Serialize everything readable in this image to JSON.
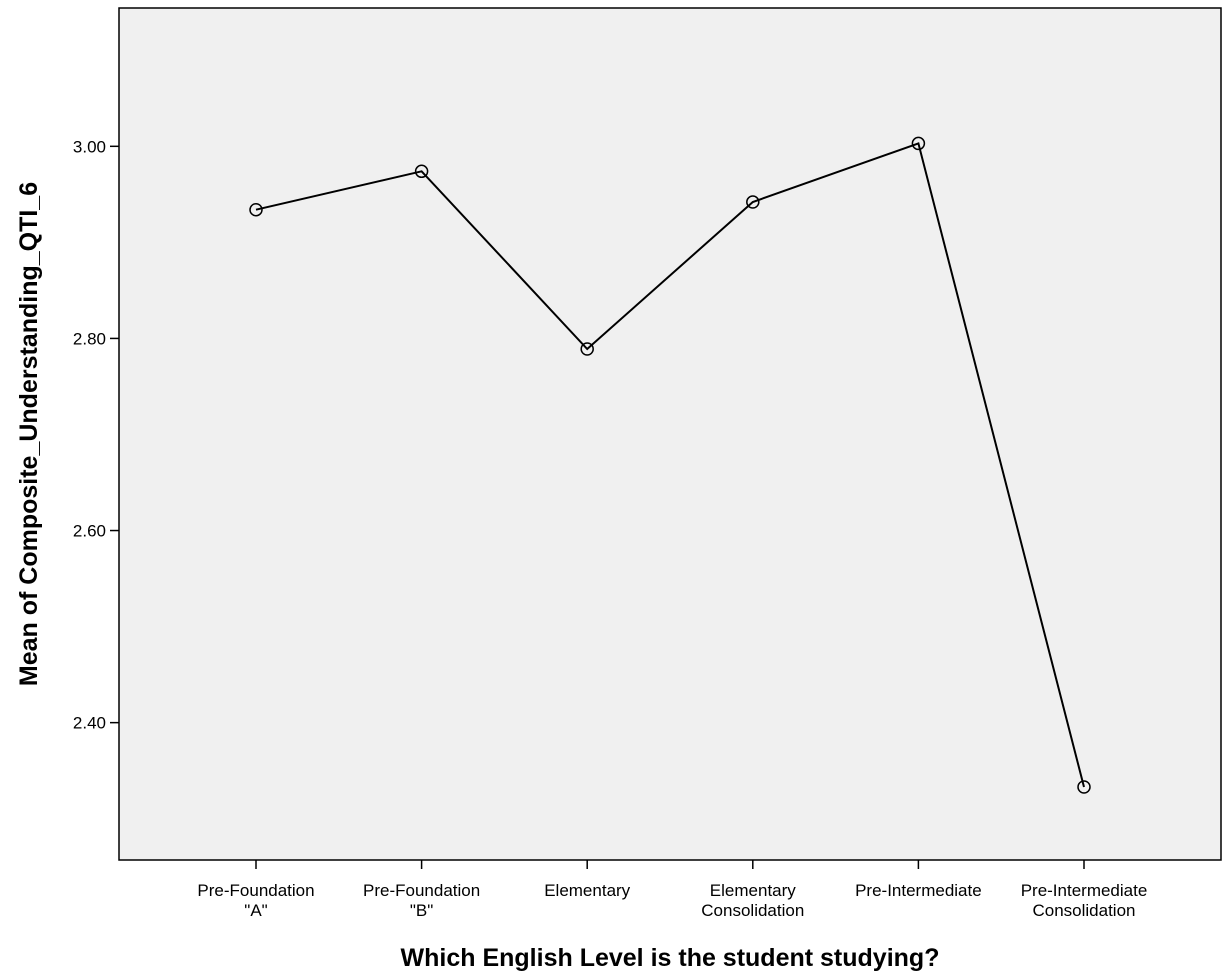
{
  "chart_data": {
    "type": "line",
    "categories": [
      [
        "Pre-Foundation",
        "\"A\""
      ],
      [
        "Pre-Foundation",
        "\"B\""
      ],
      [
        "Elementary"
      ],
      [
        "Elementary",
        "Consolidation"
      ],
      [
        "Pre-Intermediate"
      ],
      [
        "Pre-Intermediate",
        "Consolidation"
      ]
    ],
    "values": [
      2.934,
      2.974,
      2.789,
      2.942,
      3.003,
      2.333
    ],
    "xlabel": "Which English Level is the student studying?",
    "ylabel": "Mean of Composite_Understanding_QTI_6",
    "ylim": [
      2.257,
      3.144
    ],
    "yticks": [
      2.4,
      2.6,
      2.8,
      3.0
    ],
    "ytick_labels": [
      "2.40",
      "2.60",
      "2.80",
      "3.00"
    ],
    "grid": false,
    "markers": "open-circle",
    "colors": {
      "plot_background": "#f0f0f0",
      "line": "#000000",
      "frame": "#000000"
    }
  }
}
